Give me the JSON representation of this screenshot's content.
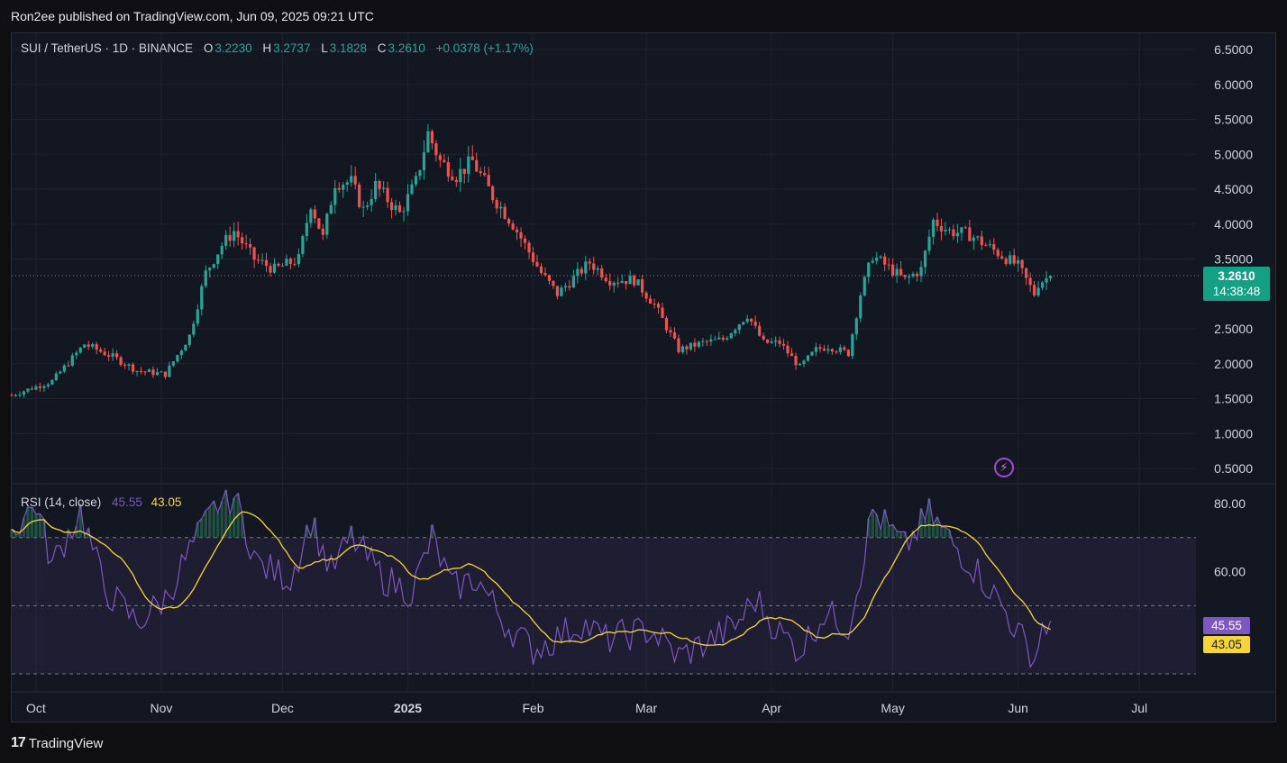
{
  "header": {
    "publisher": "Ron2ee published on TradingView.com, Jun 09, 2025 09:21 UTC"
  },
  "symbol": {
    "name": "SUI / TetherUS · 1D · BINANCE",
    "open_key": "O",
    "open": "3.2230",
    "high_key": "H",
    "high": "3.2737",
    "low_key": "L",
    "low": "3.1828",
    "close_key": "C",
    "close": "3.2610",
    "change": "+0.0378 (+1.17%)"
  },
  "price_tag": {
    "price": "3.2610",
    "countdown": "14:38:48"
  },
  "rsi_panel": {
    "label": "RSI (14, close)",
    "rsi_value": "45.55",
    "ma_value": "43.05"
  },
  "footer": {
    "logo_text": "17",
    "brand": "TradingView"
  },
  "colors": {
    "up": "#26a69a",
    "down": "#ef5350",
    "rsi": "#7e57c2",
    "rsi_ma": "#f5d63a",
    "background": "#131722",
    "grid": "#1f2330"
  },
  "chart_data": [
    {
      "type": "candlestick",
      "title": "SUI / TetherUS · 1D · BINANCE",
      "y_axis": {
        "ticks": [
          "6.5000",
          "6.0000",
          "5.5000",
          "5.0000",
          "4.5000",
          "4.0000",
          "3.5000",
          "2.5000",
          "2.0000",
          "1.5000",
          "1.0000",
          "0.5000"
        ],
        "ylim": [
          0.5,
          6.5
        ]
      },
      "x_axis": {
        "ticks": [
          "Oct",
          "Nov",
          "Dec",
          "2025",
          "Feb",
          "Mar",
          "Apr",
          "May",
          "Jun",
          "Jul"
        ],
        "range": [
          "2024-09-25",
          "2025-07-15"
        ]
      },
      "last_price": 3.261,
      "anchors": [
        [
          "2024-09-25",
          1.55
        ],
        [
          "2024-10-05",
          1.75
        ],
        [
          "2024-10-13",
          2.28
        ],
        [
          "2024-10-20",
          2.1
        ],
        [
          "2024-10-26",
          1.9
        ],
        [
          "2024-11-02",
          1.85
        ],
        [
          "2024-11-08",
          2.4
        ],
        [
          "2024-11-12",
          3.3
        ],
        [
          "2024-11-16",
          3.7
        ],
        [
          "2024-11-19",
          3.9
        ],
        [
          "2024-11-24",
          3.5
        ],
        [
          "2024-11-29",
          3.35
        ],
        [
          "2024-12-05",
          3.5
        ],
        [
          "2024-12-08",
          4.3
        ],
        [
          "2024-12-11",
          3.8
        ],
        [
          "2024-12-14",
          4.6
        ],
        [
          "2024-12-18",
          4.6
        ],
        [
          "2024-12-21",
          4.2
        ],
        [
          "2024-12-24",
          4.55
        ],
        [
          "2024-12-30",
          4.15
        ],
        [
          "2025-01-03",
          4.6
        ],
        [
          "2025-01-06",
          5.3
        ],
        [
          "2025-01-09",
          4.9
        ],
        [
          "2025-01-13",
          4.7
        ],
        [
          "2025-01-17",
          4.9
        ],
        [
          "2025-01-22",
          4.4
        ],
        [
          "2025-01-27",
          4.0
        ],
        [
          "2025-02-01",
          3.5
        ],
        [
          "2025-02-03",
          3.3
        ],
        [
          "2025-02-07",
          3.0
        ],
        [
          "2025-02-15",
          3.45
        ],
        [
          "2025-02-20",
          3.2
        ],
        [
          "2025-02-26",
          3.2
        ],
        [
          "2025-03-03",
          2.85
        ],
        [
          "2025-03-09",
          2.2
        ],
        [
          "2025-03-15",
          2.3
        ],
        [
          "2025-03-20",
          2.35
        ],
        [
          "2025-03-26",
          2.7
        ],
        [
          "2025-03-30",
          2.3
        ],
        [
          "2025-04-03",
          2.3
        ],
        [
          "2025-04-08",
          1.95
        ],
        [
          "2025-04-12",
          2.2
        ],
        [
          "2025-04-15",
          2.25
        ],
        [
          "2025-04-20",
          2.15
        ],
        [
          "2025-04-23",
          3.0
        ],
        [
          "2025-04-26",
          3.55
        ],
        [
          "2025-05-04",
          3.2
        ],
        [
          "2025-05-08",
          3.35
        ],
        [
          "2025-05-11",
          4.05
        ],
        [
          "2025-05-15",
          3.9
        ],
        [
          "2025-05-20",
          3.85
        ],
        [
          "2025-05-24",
          3.7
        ],
        [
          "2025-05-28",
          3.55
        ],
        [
          "2025-06-01",
          3.4
        ],
        [
          "2025-06-05",
          3.0
        ],
        [
          "2025-06-06",
          3.15
        ],
        [
          "2025-06-09",
          3.26
        ]
      ]
    },
    {
      "type": "line",
      "title": "RSI (14, close)",
      "y_axis": {
        "ticks": [
          "80.00",
          "60.00"
        ],
        "ylim": [
          30,
          85
        ],
        "bands": [
          30,
          50,
          70
        ]
      },
      "series": [
        {
          "name": "RSI",
          "color": "#7e57c2",
          "last": 45.55
        },
        {
          "name": "RSI-based MA",
          "color": "#f5d63a",
          "last": 43.05
        }
      ],
      "anchors": [
        [
          "2024-09-25",
          72
        ],
        [
          "2024-10-01",
          80
        ],
        [
          "2024-10-05",
          62
        ],
        [
          "2024-10-12",
          78
        ],
        [
          "2024-10-18",
          55
        ],
        [
          "2024-10-26",
          45
        ],
        [
          "2024-11-02",
          52
        ],
        [
          "2024-11-08",
          66
        ],
        [
          "2024-11-15",
          80
        ],
        [
          "2024-11-19",
          82
        ],
        [
          "2024-11-25",
          62
        ],
        [
          "2024-12-03",
          58
        ],
        [
          "2024-12-08",
          75
        ],
        [
          "2024-12-13",
          60
        ],
        [
          "2024-12-18",
          70
        ],
        [
          "2024-12-26",
          58
        ],
        [
          "2025-01-02",
          54
        ],
        [
          "2025-01-07",
          70
        ],
        [
          "2025-01-12",
          55
        ],
        [
          "2025-01-18",
          58
        ],
        [
          "2025-01-25",
          45
        ],
        [
          "2025-02-01",
          37
        ],
        [
          "2025-02-06",
          40
        ],
        [
          "2025-02-13",
          45
        ],
        [
          "2025-02-19",
          40
        ],
        [
          "2025-02-26",
          42
        ],
        [
          "2025-03-02",
          43
        ],
        [
          "2025-03-09",
          35
        ],
        [
          "2025-03-17",
          40
        ],
        [
          "2025-03-23",
          44
        ],
        [
          "2025-03-28",
          52
        ],
        [
          "2025-04-03",
          42
        ],
        [
          "2025-04-08",
          37
        ],
        [
          "2025-04-14",
          48
        ],
        [
          "2025-04-20",
          44
        ],
        [
          "2025-04-23",
          60
        ],
        [
          "2025-04-26",
          78
        ],
        [
          "2025-05-04",
          67
        ],
        [
          "2025-05-10",
          77
        ],
        [
          "2025-05-16",
          68
        ],
        [
          "2025-05-22",
          60
        ],
        [
          "2025-05-28",
          50
        ],
        [
          "2025-06-01",
          42
        ],
        [
          "2025-06-05",
          34
        ],
        [
          "2025-06-07",
          44
        ],
        [
          "2025-06-09",
          45.55
        ]
      ]
    }
  ]
}
